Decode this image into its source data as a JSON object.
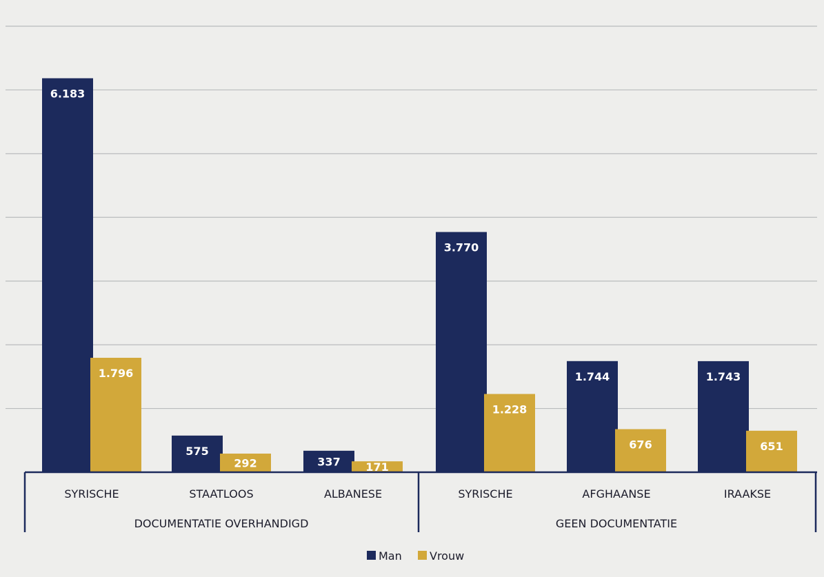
{
  "chart_data": {
    "type": "bar",
    "groups": [
      {
        "label": "DOCUMENTATIE OVERHANDIGD",
        "categories": [
          "SYRISCHE",
          "STAATLOOS",
          "ALBANESE"
        ]
      },
      {
        "label": "GEEN DOCUMENTATIE",
        "categories": [
          "SYRISCHE",
          "AFGHAANSE",
          "IRAAKSE"
        ]
      }
    ],
    "categories": [
      "SYRISCHE",
      "STAATLOOS",
      "ALBANESE",
      "SYRISCHE",
      "AFGHAANSE",
      "IRAAKSE"
    ],
    "series": [
      {
        "name": "Man",
        "color": "#1c2a5c",
        "values": [
          6183,
          575,
          337,
          3770,
          1744,
          1743
        ],
        "labels": [
          "6.183",
          "575",
          "337",
          "3.770",
          "1.744",
          "1.743"
        ]
      },
      {
        "name": "Vrouw",
        "color": "#d2a83a",
        "values": [
          1796,
          292,
          171,
          1228,
          676,
          651
        ],
        "labels": [
          "1.796",
          "292",
          "171",
          "1.228",
          "676",
          "651"
        ]
      }
    ],
    "ylim": [
      0,
      7000
    ],
    "grid": true,
    "legend": "bottom-center"
  }
}
